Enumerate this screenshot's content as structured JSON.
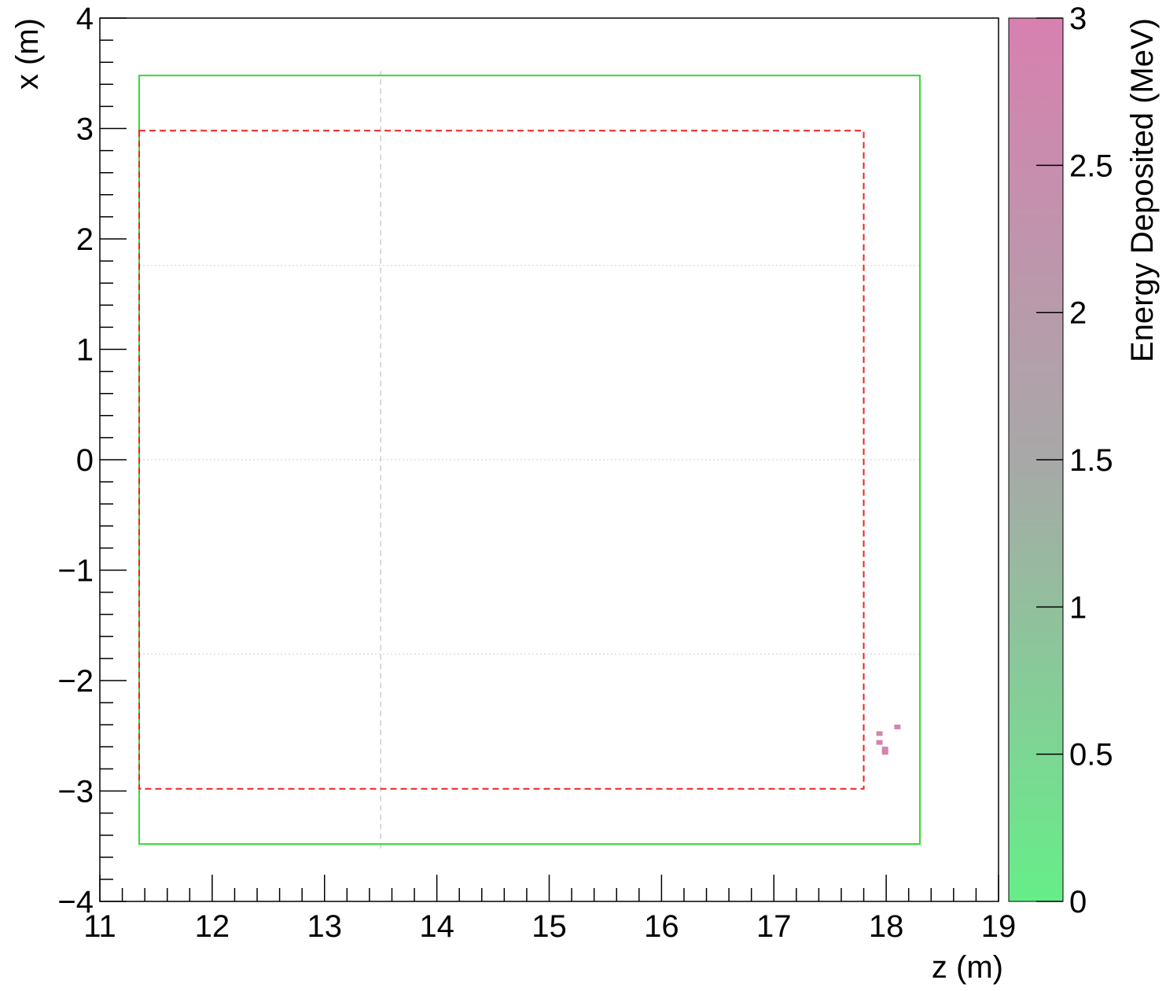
{
  "chart_data": {
    "type": "heatmap",
    "title": "",
    "xlabel": "z (m)",
    "ylabel": "x (m)",
    "zlabel": "Energy Deposited (MeV)",
    "xlim": [
      11,
      19
    ],
    "ylim": [
      -4,
      4
    ],
    "zlim": [
      0,
      3
    ],
    "x_ticks": [
      {
        "value": 11,
        "label": "11"
      },
      {
        "value": 12,
        "label": "12"
      },
      {
        "value": 13,
        "label": "13"
      },
      {
        "value": 14,
        "label": "14"
      },
      {
        "value": 15,
        "label": "15"
      },
      {
        "value": 16,
        "label": "16"
      },
      {
        "value": 17,
        "label": "17"
      },
      {
        "value": 18,
        "label": "18"
      },
      {
        "value": 19,
        "label": "19"
      }
    ],
    "y_ticks": [
      {
        "value": -4,
        "label": "−4"
      },
      {
        "value": -3,
        "label": "−3"
      },
      {
        "value": -2,
        "label": "−2"
      },
      {
        "value": -1,
        "label": "−1"
      },
      {
        "value": 0,
        "label": "0"
      },
      {
        "value": 1,
        "label": "1"
      },
      {
        "value": 2,
        "label": "2"
      },
      {
        "value": 3,
        "label": "3"
      },
      {
        "value": 4,
        "label": "4"
      }
    ],
    "z_ticks": [
      {
        "value": 0,
        "label": "0"
      },
      {
        "value": 0.5,
        "label": "0.5"
      },
      {
        "value": 1,
        "label": "1"
      },
      {
        "value": 1.5,
        "label": "1.5"
      },
      {
        "value": 2,
        "label": "2"
      },
      {
        "value": 2.5,
        "label": "2.5"
      },
      {
        "value": 3,
        "label": "3"
      }
    ],
    "colorscale": [
      "#66ee88",
      "#a8a8a8",
      "#d880b0"
    ],
    "outlines": [
      {
        "name": "outer-volume-outline",
        "z": [
          11.35,
          18.3
        ],
        "x": [
          -3.48,
          3.48
        ],
        "color": "#33dd33",
        "style": "solid"
      },
      {
        "name": "fiducial-volume-outline",
        "z": [
          11.35,
          17.8
        ],
        "x": [
          -2.98,
          2.98
        ],
        "color": "#ee2222",
        "style": "dashed"
      }
    ],
    "reference_lines": [
      {
        "name": "vertical-reference-line",
        "orientation": "vertical",
        "value": 13.5,
        "range": [
          -3.52,
          3.52
        ],
        "color": "#cccccc",
        "style": "dashed"
      },
      {
        "name": "horizontal-reference-line",
        "orientation": "horizontal",
        "value": 1.76,
        "range": [
          11.35,
          18.3
        ],
        "color": "#dddddd",
        "style": "dotted"
      },
      {
        "name": "horizontal-reference-line",
        "orientation": "horizontal",
        "value": 0,
        "range": [
          11.35,
          18.3
        ],
        "color": "#dddddd",
        "style": "dotted"
      },
      {
        "name": "horizontal-reference-line",
        "orientation": "horizontal",
        "value": -1.76,
        "range": [
          11.35,
          18.3
        ],
        "color": "#dddddd",
        "style": "dotted"
      }
    ],
    "points": [
      {
        "z": 18.1,
        "x": -2.42,
        "energy": 2.8
      },
      {
        "z": 17.94,
        "x": -2.48,
        "energy": 2.7
      },
      {
        "z": 17.94,
        "x": -2.56,
        "energy": 2.9
      },
      {
        "z": 17.99,
        "x": -2.62,
        "energy": 2.8
      },
      {
        "z": 17.99,
        "x": -2.65,
        "energy": 2.9
      }
    ]
  }
}
